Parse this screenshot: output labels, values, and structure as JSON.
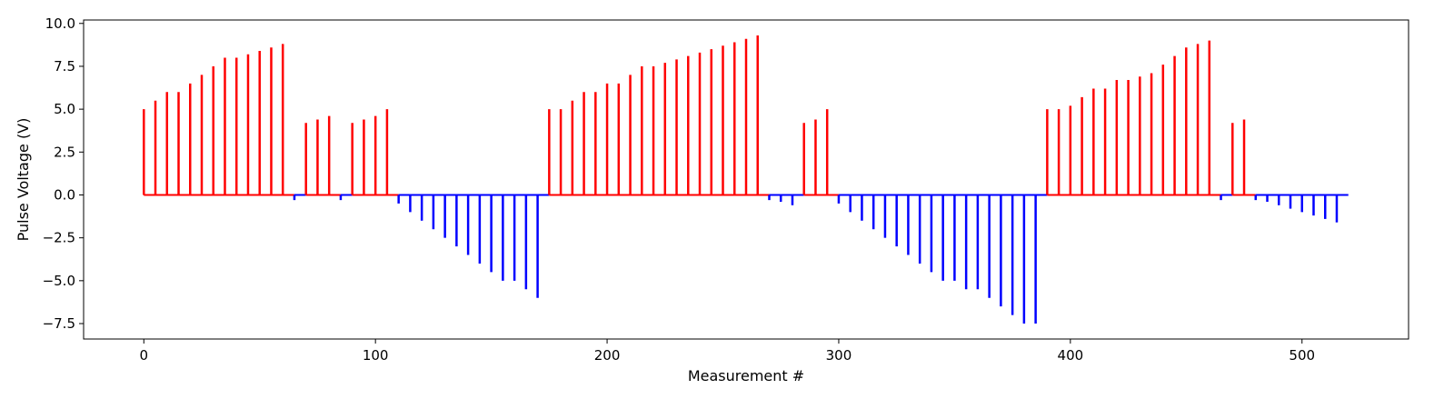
{
  "chart_data": {
    "type": "stem",
    "title": "",
    "xlabel": "Measurement #",
    "ylabel": "Pulse Voltage (V)",
    "xlim": [
      -26,
      546
    ],
    "ylim": [
      -8.4,
      10.2
    ],
    "x_ticks": [
      0,
      100,
      200,
      300,
      400,
      500
    ],
    "y_ticks": [
      -7.5,
      -5.0,
      -2.5,
      0.0,
      2.5,
      5.0,
      7.5,
      10.0
    ],
    "x_tick_labels": [
      "0",
      "100",
      "200",
      "300",
      "400",
      "500"
    ],
    "y_tick_labels": [
      "−7.5",
      "−5.0",
      "−2.5",
      "0.0",
      "2.5",
      "5.0",
      "7.5",
      "10.0"
    ],
    "grid": false,
    "legend": "none",
    "colors": {
      "positive": "#ff0000",
      "negative": "#0000ff",
      "axes": "#000000"
    },
    "baseline_segments": [
      {
        "x_start": 0,
        "x_end": 65,
        "color": "#ff0000"
      },
      {
        "x_start": 65,
        "x_end": 70,
        "color": "#0000ff"
      },
      {
        "x_start": 70,
        "x_end": 85,
        "color": "#ff0000"
      },
      {
        "x_start": 85,
        "x_end": 90,
        "color": "#0000ff"
      },
      {
        "x_start": 90,
        "x_end": 110,
        "color": "#ff0000"
      },
      {
        "x_start": 110,
        "x_end": 175,
        "color": "#0000ff"
      },
      {
        "x_start": 175,
        "x_end": 270,
        "color": "#ff0000"
      },
      {
        "x_start": 270,
        "x_end": 285,
        "color": "#0000ff"
      },
      {
        "x_start": 285,
        "x_end": 300,
        "color": "#ff0000"
      },
      {
        "x_start": 300,
        "x_end": 390,
        "color": "#0000ff"
      },
      {
        "x_start": 390,
        "x_end": 465,
        "color": "#ff0000"
      },
      {
        "x_start": 465,
        "x_end": 470,
        "color": "#0000ff"
      },
      {
        "x_start": 470,
        "x_end": 480,
        "color": "#ff0000"
      },
      {
        "x_start": 480,
        "x_end": 520,
        "color": "#0000ff"
      }
    ],
    "x": [
      0,
      5,
      10,
      15,
      20,
      25,
      30,
      35,
      40,
      45,
      50,
      55,
      60,
      65,
      70,
      75,
      80,
      85,
      90,
      95,
      100,
      105,
      110,
      115,
      120,
      125,
      130,
      135,
      140,
      145,
      150,
      155,
      160,
      165,
      170,
      175,
      180,
      185,
      190,
      195,
      200,
      205,
      210,
      215,
      220,
      225,
      230,
      235,
      240,
      245,
      250,
      255,
      260,
      265,
      270,
      275,
      280,
      285,
      290,
      295,
      300,
      305,
      310,
      315,
      320,
      325,
      330,
      335,
      340,
      345,
      350,
      355,
      360,
      365,
      370,
      375,
      380,
      385,
      390,
      395,
      400,
      405,
      410,
      415,
      420,
      425,
      430,
      435,
      440,
      445,
      450,
      455,
      460,
      465,
      470,
      475,
      480,
      485,
      490,
      495,
      500,
      505,
      510,
      515
    ],
    "y": [
      5.0,
      5.5,
      6.0,
      6.0,
      6.5,
      7.0,
      7.5,
      8.0,
      8.0,
      8.2,
      8.4,
      8.6,
      8.8,
      -0.3,
      4.2,
      4.4,
      4.6,
      -0.3,
      4.2,
      4.4,
      4.6,
      5.0,
      -0.5,
      -1.0,
      -1.5,
      -2.0,
      -2.5,
      -3.0,
      -3.5,
      -4.0,
      -4.5,
      -5.0,
      -5.0,
      -5.5,
      -6.0,
      5.0,
      5.0,
      5.5,
      6.0,
      6.0,
      6.5,
      6.5,
      7.0,
      7.5,
      7.5,
      7.7,
      7.9,
      8.1,
      8.3,
      8.5,
      8.7,
      8.9,
      9.1,
      9.3,
      -0.3,
      -0.4,
      -0.6,
      4.2,
      4.4,
      5.0,
      -0.5,
      -1.0,
      -1.5,
      -2.0,
      -2.5,
      -3.0,
      -3.5,
      -4.0,
      -4.5,
      -5.0,
      -5.0,
      -5.5,
      -5.5,
      -6.0,
      -6.5,
      -7.0,
      -7.5,
      -7.5,
      5.0,
      5.0,
      5.2,
      5.7,
      6.2,
      6.2,
      6.7,
      6.7,
      6.9,
      7.1,
      7.6,
      8.1,
      8.6,
      8.8,
      9.0,
      -0.3,
      4.2,
      4.4,
      -0.3,
      -0.4,
      -0.6,
      -0.8,
      -1.0,
      -1.2,
      -1.4,
      -1.6
    ]
  }
}
